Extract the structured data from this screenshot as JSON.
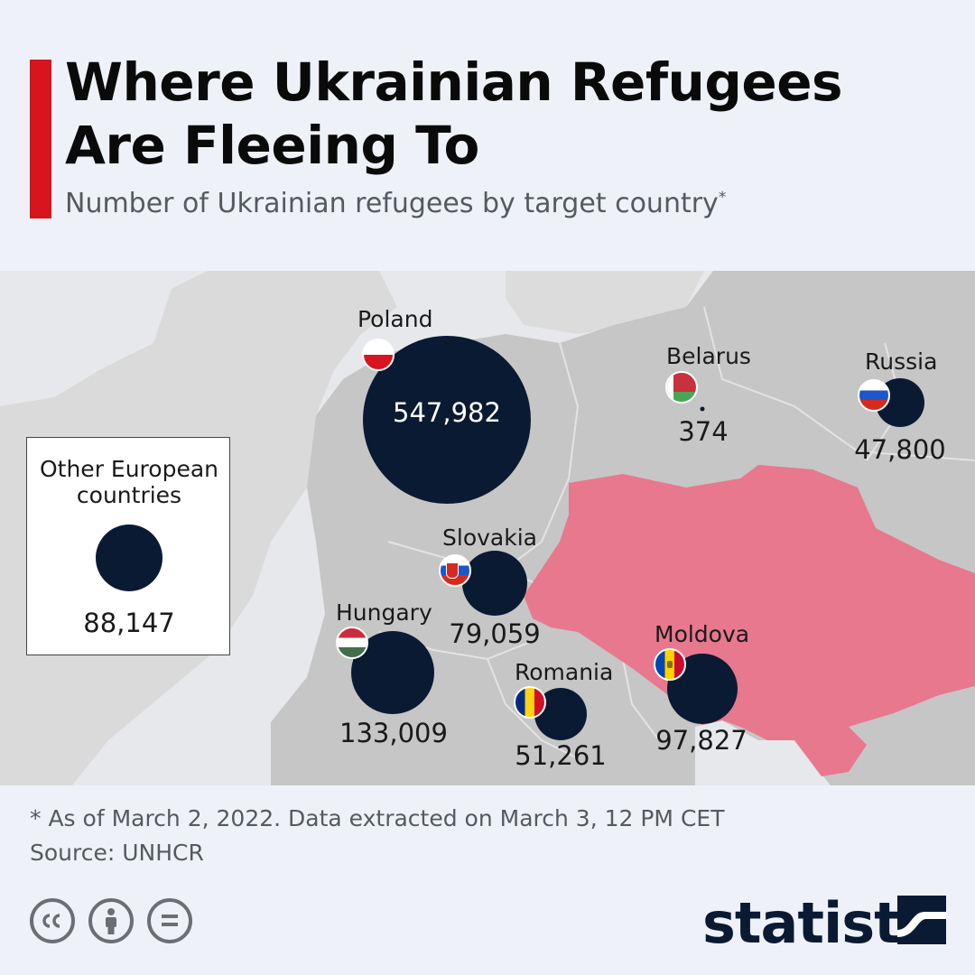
{
  "title_line1": "Where Ukrainian Refugees",
  "title_line2": "Are Fleeing To",
  "subtitle": "Number of Ukrainian refugees by target country",
  "subtitle_mark": "*",
  "colors": {
    "accent": "#d8141f",
    "bubble": "#0b1a33",
    "ukraine": "#e8788d",
    "land": "#c6c6c6",
    "land_light": "#d9d9d9",
    "sea": "#e6e8eb"
  },
  "map": {
    "countries": [
      {
        "name": "Poland",
        "value": "547,982",
        "flag": "poland-flag-icon"
      },
      {
        "name": "Belarus",
        "value": "374",
        "flag": "belarus-flag-icon"
      },
      {
        "name": "Russia",
        "value": "47,800",
        "flag": "russia-flag-icon"
      },
      {
        "name": "Slovakia",
        "value": "79,059",
        "flag": "slovakia-flag-icon"
      },
      {
        "name": "Hungary",
        "value": "133,009",
        "flag": "hungary-flag-icon"
      },
      {
        "name": "Romania",
        "value": "51,261",
        "flag": "romania-flag-icon"
      },
      {
        "name": "Moldova",
        "value": "97,827",
        "flag": "moldova-flag-icon"
      }
    ],
    "other": {
      "line1": "Other European",
      "line2": "countries",
      "value": "88,147"
    }
  },
  "footnote": "* As of March 2, 2022. Data extracted on March 3, 12 PM CET",
  "source": "Source: UNHCR",
  "license_icons": [
    "cc-icon",
    "attribution-icon",
    "no-derivatives-icon"
  ],
  "brand": "statista",
  "brand_icon": "statista-logo-icon"
}
